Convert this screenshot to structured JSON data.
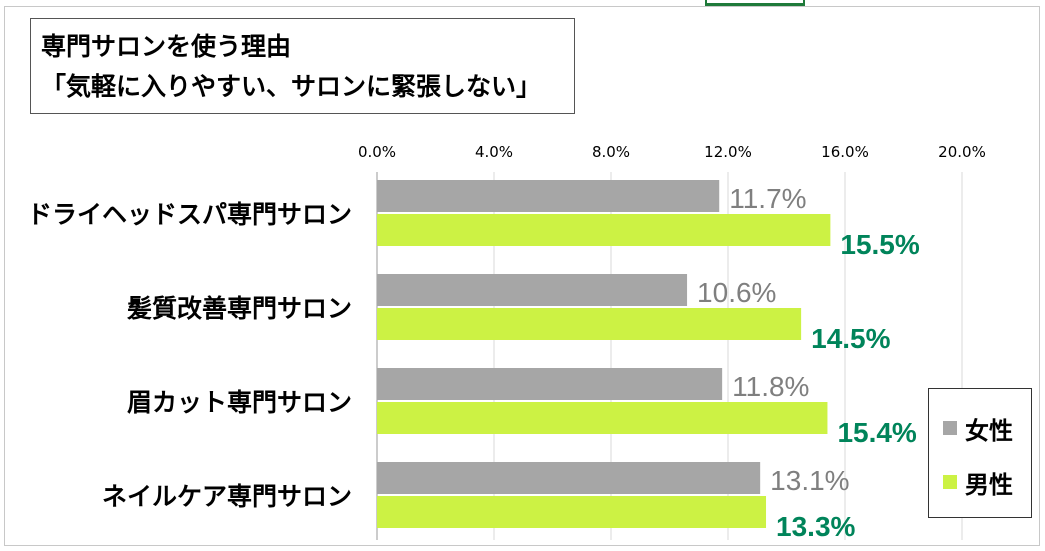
{
  "chart_data": {
    "type": "bar",
    "orientation": "horizontal",
    "title": "専門サロンを使う理由",
    "subtitle": "「気軽に入りやすい、サロンに緊張しない」",
    "categories": [
      "ドライヘッドスパ専門サロン",
      "髪質改善専門サロン",
      "眉カット専門サロン",
      "ネイルケア専門サロン"
    ],
    "series": [
      {
        "name": "女性",
        "values": [
          11.7,
          10.6,
          11.8,
          13.1
        ],
        "labels": [
          "11.7%",
          "10.6%",
          "11.8%",
          "13.1%"
        ],
        "color": "#a6a6a6",
        "label_color": "#7f7f7f"
      },
      {
        "name": "男性",
        "values": [
          15.5,
          14.5,
          15.4,
          13.3
        ],
        "labels": [
          "15.5%",
          "14.5%",
          "15.4%",
          "13.3%"
        ],
        "color": "#ccf244",
        "label_color": "#00845a"
      }
    ],
    "xlim": [
      0,
      20
    ],
    "ticks": [
      0,
      4,
      8,
      12,
      16,
      20
    ],
    "tick_labels": [
      "0.0%",
      "4.0%",
      "8.0%",
      "12.0%",
      "16.0%",
      "20.0%"
    ],
    "grid": true,
    "legend_position": "bottom-right"
  }
}
